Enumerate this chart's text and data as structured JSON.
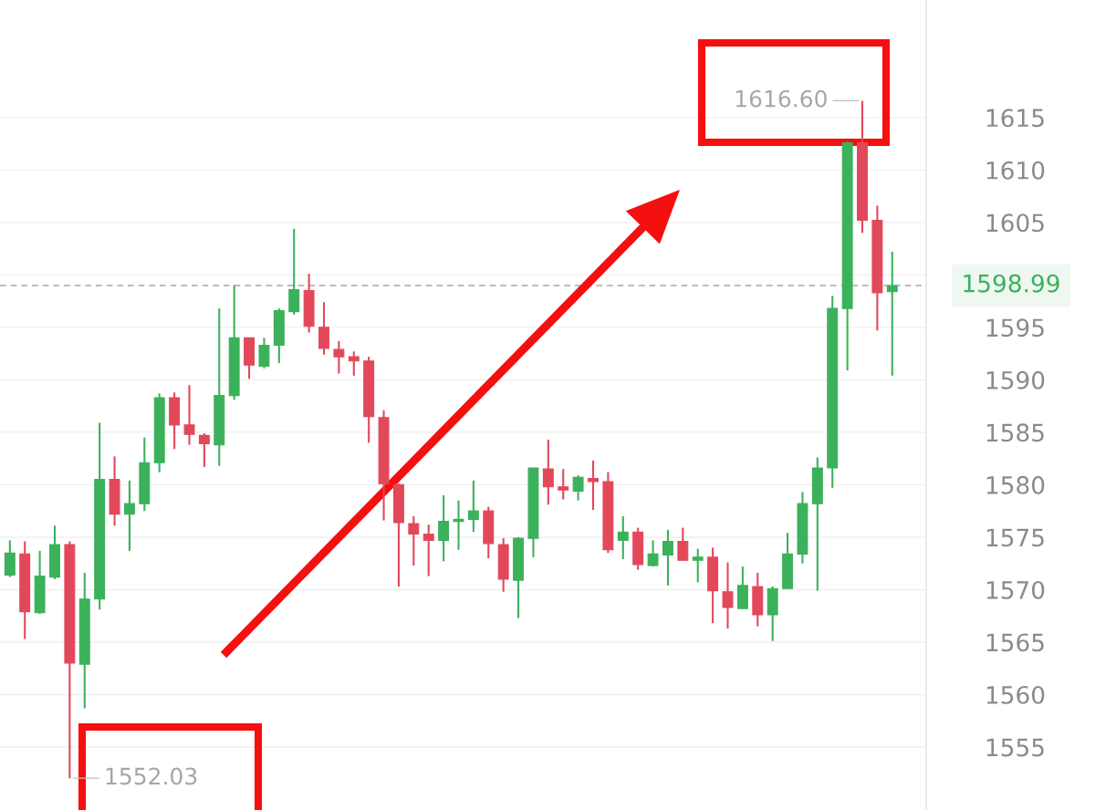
{
  "chart_data": {
    "type": "candlestick",
    "categories": [
      null,
      null,
      null,
      null,
      null,
      null,
      null,
      null,
      null,
      null,
      null,
      null,
      null,
      null,
      null,
      null,
      null,
      null,
      null,
      null,
      null,
      null,
      null,
      null,
      null,
      null,
      null,
      null,
      null,
      null,
      null,
      null,
      null,
      null,
      null,
      null,
      null,
      null,
      null,
      null,
      null,
      null,
      null,
      null,
      null,
      null,
      null,
      null,
      null,
      null,
      null,
      null,
      null,
      null,
      null,
      null,
      null,
      null,
      null,
      null
    ],
    "ohlc": [
      [
        1571.4,
        1574.7,
        1571.2,
        1573.5
      ],
      [
        1573.4,
        1574.6,
        1565.3,
        1567.9
      ],
      [
        1567.8,
        1573.7,
        1567.7,
        1571.3
      ],
      [
        1571.2,
        1576.1,
        1571.0,
        1574.3
      ],
      [
        1574.3,
        1574.6,
        1552.03,
        1563.0
      ],
      [
        1562.9,
        1571.6,
        1558.7,
        1569.1
      ],
      [
        1569.1,
        1585.9,
        1568.1,
        1580.5
      ],
      [
        1580.5,
        1582.7,
        1576.1,
        1577.2
      ],
      [
        1577.2,
        1580.4,
        1573.7,
        1578.2
      ],
      [
        1578.2,
        1584.5,
        1577.5,
        1582.1
      ],
      [
        1582.1,
        1588.7,
        1581.2,
        1588.3
      ],
      [
        1588.3,
        1588.8,
        1583.4,
        1585.7
      ],
      [
        1585.7,
        1589.5,
        1583.8,
        1584.8
      ],
      [
        1584.7,
        1584.9,
        1581.7,
        1583.9
      ],
      [
        1583.8,
        1596.8,
        1581.8,
        1588.5
      ],
      [
        1588.5,
        1599.0,
        1588.1,
        1594.0
      ],
      [
        1594.0,
        1594.0,
        1590.1,
        1591.4
      ],
      [
        1591.3,
        1594.0,
        1591.1,
        1593.3
      ],
      [
        1593.3,
        1596.8,
        1591.6,
        1596.6
      ],
      [
        1596.5,
        1604.4,
        1596.2,
        1598.6
      ],
      [
        1598.5,
        1600.1,
        1594.5,
        1595.1
      ],
      [
        1595.0,
        1597.4,
        1592.4,
        1593.0
      ],
      [
        1592.9,
        1593.7,
        1590.6,
        1592.2
      ],
      [
        1592.2,
        1592.7,
        1590.4,
        1591.8
      ],
      [
        1591.8,
        1592.2,
        1584.0,
        1586.5
      ],
      [
        1586.4,
        1587.1,
        1576.6,
        1580.1
      ],
      [
        1580.0,
        1580.1,
        1570.3,
        1576.4
      ],
      [
        1576.3,
        1577.0,
        1572.3,
        1575.3
      ],
      [
        1575.3,
        1576.2,
        1571.3,
        1574.7
      ],
      [
        1574.7,
        1579.0,
        1572.7,
        1576.5
      ],
      [
        1576.5,
        1578.5,
        1573.8,
        1576.7
      ],
      [
        1576.7,
        1580.4,
        1575.5,
        1577.5
      ],
      [
        1577.5,
        1577.9,
        1573.0,
        1574.4
      ],
      [
        1574.3,
        1574.9,
        1569.8,
        1571.0
      ],
      [
        1570.9,
        1575.0,
        1567.3,
        1574.9
      ],
      [
        1574.9,
        1581.6,
        1573.1,
        1581.6
      ],
      [
        1581.5,
        1584.3,
        1578.1,
        1579.8
      ],
      [
        1579.8,
        1581.5,
        1578.6,
        1579.5
      ],
      [
        1579.4,
        1580.9,
        1578.5,
        1580.7
      ],
      [
        1580.6,
        1582.3,
        1577.6,
        1580.3
      ],
      [
        1580.3,
        1581.2,
        1573.5,
        1573.8
      ],
      [
        1574.7,
        1577.0,
        1572.9,
        1575.5
      ],
      [
        1575.5,
        1575.9,
        1571.9,
        1572.4
      ],
      [
        1572.3,
        1574.7,
        1572.2,
        1573.4
      ],
      [
        1573.3,
        1575.7,
        1570.4,
        1574.6
      ],
      [
        1574.6,
        1575.9,
        1572.8,
        1572.8
      ],
      [
        1572.8,
        1573.9,
        1570.7,
        1573.1
      ],
      [
        1573.1,
        1574.0,
        1566.8,
        1569.9
      ],
      [
        1569.8,
        1572.6,
        1566.3,
        1568.3
      ],
      [
        1568.2,
        1572.2,
        1568.2,
        1570.4
      ],
      [
        1570.3,
        1571.6,
        1566.5,
        1567.6
      ],
      [
        1567.6,
        1570.3,
        1565.1,
        1570.1
      ],
      [
        1570.1,
        1575.4,
        1570.1,
        1573.4
      ],
      [
        1573.4,
        1579.3,
        1572.5,
        1578.2
      ],
      [
        1578.2,
        1582.6,
        1569.9,
        1581.6
      ],
      [
        1581.6,
        1598.0,
        1579.7,
        1596.8
      ],
      [
        1596.8,
        1612.7,
        1590.9,
        1612.6
      ],
      [
        1612.6,
        1616.6,
        1604.0,
        1605.2
      ],
      [
        1605.2,
        1606.6,
        1594.7,
        1598.3
      ],
      [
        1598.4,
        1602.2,
        1590.4,
        1598.99
      ]
    ],
    "colors": [
      "#3bb15b",
      "#e2485a",
      "#3bb15b",
      "#3bb15b",
      "#e2485a",
      "#3bb15b",
      "#3bb15b",
      "#e2485a",
      "#3bb15b",
      "#3bb15b",
      "#3bb15b",
      "#e2485a",
      "#e2485a",
      "#e2485a",
      "#3bb15b",
      "#3bb15b",
      "#e2485a",
      "#3bb15b",
      "#3bb15b",
      "#3bb15b",
      "#e2485a",
      "#e2485a",
      "#e2485a",
      "#e2485a",
      "#e2485a",
      "#e2485a",
      "#e2485a",
      "#e2485a",
      "#e2485a",
      "#3bb15b",
      "#3bb15b",
      "#3bb15b",
      "#e2485a",
      "#e2485a",
      "#3bb15b",
      "#3bb15b",
      "#e2485a",
      "#e2485a",
      "#3bb15b",
      "#e2485a",
      "#e2485a",
      "#3bb15b",
      "#e2485a",
      "#3bb15b",
      "#3bb15b",
      "#e2485a",
      "#3bb15b",
      "#e2485a",
      "#e2485a",
      "#3bb15b",
      "#e2485a",
      "#3bb15b",
      "#3bb15b",
      "#3bb15b",
      "#3bb15b",
      "#3bb15b",
      "#3bb15b",
      "#e2485a",
      "#e2485a",
      "#3bb15b"
    ],
    "ylim": [
      1549.0,
      1626.2
    ],
    "yticks": [
      1555,
      1560,
      1565,
      1570,
      1575,
      1580,
      1585,
      1590,
      1595,
      {
        "value": 1600,
        "label": null
      },
      1605,
      1610,
      1615
    ],
    "grid": "y",
    "tick_labels": "y",
    "ref_lines": [
      {
        "axis": "y",
        "value": 1598.99,
        "label": "1598.99",
        "color": "#a8a8a8",
        "line_style": "dashed"
      }
    ],
    "annotations": [
      "1616.60",
      "1552.03"
    ]
  }
}
